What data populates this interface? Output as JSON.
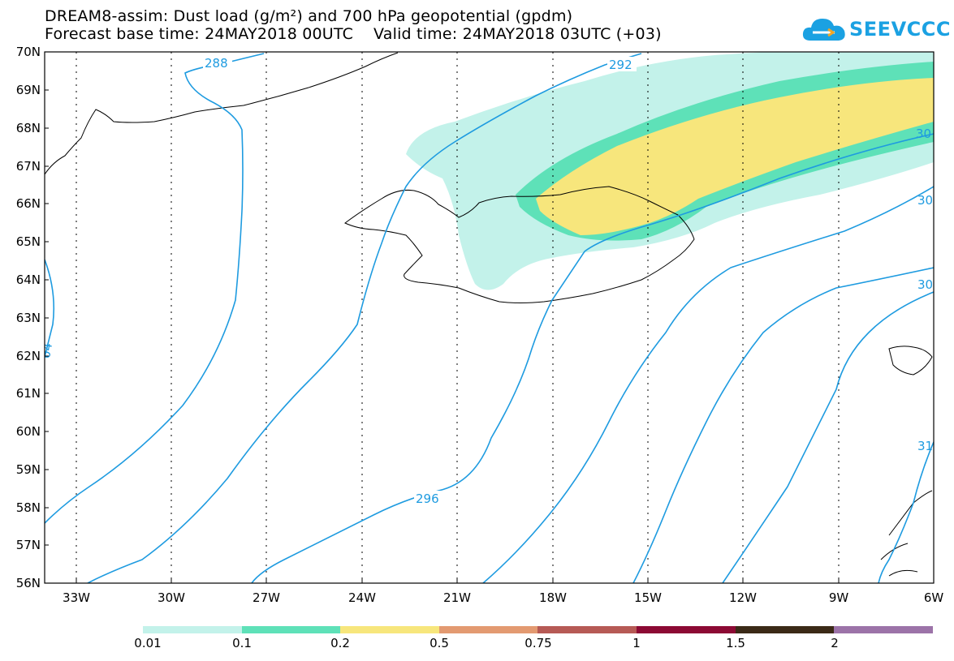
{
  "title": {
    "line1": "DREAM8-assim: Dust load (g/m²) and 700 hPa geopotential (gpdm)",
    "line2": "Forecast base time: 24MAY2018 00UTC    Valid time: 24MAY2018 03UTC (+03)"
  },
  "logo": {
    "text": "SEEVCCC",
    "icon": "cloud-icon",
    "color": "#1ba1e2"
  },
  "axes": {
    "lat_labels": [
      "70N",
      "69N",
      "68N",
      "67N",
      "66N",
      "65N",
      "64N",
      "63N",
      "62N",
      "61N",
      "60N",
      "59N",
      "58N",
      "57N",
      "56N"
    ],
    "lon_labels": [
      "33W",
      "30W",
      "27W",
      "24W",
      "21W",
      "18W",
      "15W",
      "12W",
      "9W",
      "6W"
    ]
  },
  "contours": {
    "color": "#1e9be0",
    "labels": [
      "288",
      "292",
      "296",
      "30",
      "30",
      "30",
      "31",
      "04"
    ]
  },
  "colorbar": {
    "colors": [
      "#c3f2ea",
      "#5ee1b8",
      "#f7e67c",
      "#e39a71",
      "#b65a55",
      "#8c0a34",
      "#3b2a17",
      "#9c73a8"
    ],
    "labels": [
      "0.01",
      "0.1",
      "0.2",
      "0.5",
      "0.75",
      "1",
      "1.5",
      "2"
    ]
  }
}
